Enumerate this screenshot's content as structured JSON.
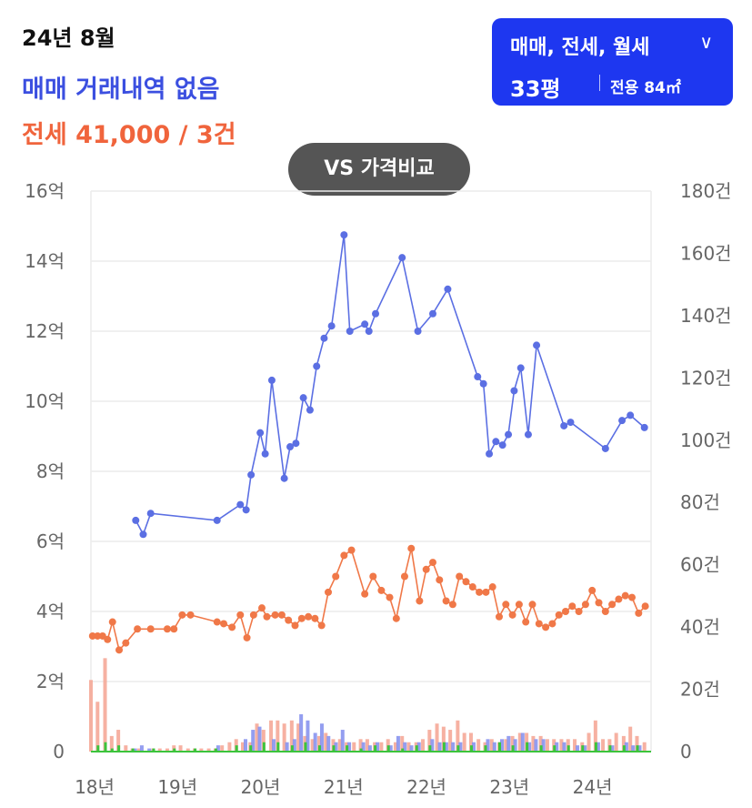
{
  "header": {
    "date": "24년 8월",
    "sale_status": "매매 거래내역 없음",
    "rent_summary": "전세 41,000 / 3건"
  },
  "selector": {
    "types": "매매, 전세, 월세",
    "chevron_icon": "chevron-down-icon",
    "size_pyeong": "33평",
    "size_area": "전용 84㎡"
  },
  "compare_button": {
    "label": "VS 가격비교"
  },
  "colors": {
    "sale": "#5b6fe3",
    "rent": "#f07848",
    "selector_bg": "#1e37f0",
    "vol_green": "#3cc43c"
  },
  "chart_data": {
    "type": "line",
    "x_ticks": [
      "18년",
      "19년",
      "20년",
      "21년",
      "22년",
      "23년",
      "24년"
    ],
    "x_range": [
      2018.0,
      2024.75
    ],
    "y_left": {
      "ticks": [
        "0",
        "2억",
        "4억",
        "6억",
        "8억",
        "10억",
        "12억",
        "14억",
        "16억"
      ],
      "range": [
        0,
        16
      ]
    },
    "y_right": {
      "ticks": [
        "0",
        "20건",
        "40건",
        "60건",
        "80건",
        "100건",
        "120건",
        "140건",
        "160건",
        "180건"
      ],
      "range": [
        0,
        180
      ]
    },
    "series": [
      {
        "key": "sale",
        "color": "#5b6fe3",
        "points": [
          [
            2018.54,
            6.6
          ],
          [
            2018.63,
            6.2
          ],
          [
            2018.72,
            6.8
          ],
          [
            2019.52,
            6.6
          ],
          [
            2019.8,
            7.05
          ],
          [
            2019.87,
            6.9
          ],
          [
            2019.93,
            7.9
          ],
          [
            2020.04,
            9.1
          ],
          [
            2020.1,
            8.5
          ],
          [
            2020.18,
            10.6
          ],
          [
            2020.33,
            7.8
          ],
          [
            2020.4,
            8.7
          ],
          [
            2020.47,
            8.8
          ],
          [
            2020.56,
            10.1
          ],
          [
            2020.64,
            9.75
          ],
          [
            2020.72,
            11.0
          ],
          [
            2020.81,
            11.8
          ],
          [
            2020.9,
            12.15
          ],
          [
            2021.05,
            14.75
          ],
          [
            2021.12,
            12.0
          ],
          [
            2021.3,
            12.2
          ],
          [
            2021.35,
            12.0
          ],
          [
            2021.43,
            12.5
          ],
          [
            2021.75,
            14.1
          ],
          [
            2021.94,
            12.0
          ],
          [
            2022.12,
            12.5
          ],
          [
            2022.3,
            13.2
          ],
          [
            2022.66,
            10.7
          ],
          [
            2022.73,
            10.5
          ],
          [
            2022.8,
            8.5
          ],
          [
            2022.88,
            8.85
          ],
          [
            2022.96,
            8.75
          ],
          [
            2023.03,
            9.05
          ],
          [
            2023.1,
            10.3
          ],
          [
            2023.18,
            10.95
          ],
          [
            2023.27,
            9.05
          ],
          [
            2023.37,
            11.6
          ],
          [
            2023.7,
            9.3
          ],
          [
            2023.78,
            9.4
          ],
          [
            2024.2,
            8.65
          ],
          [
            2024.4,
            9.45
          ],
          [
            2024.5,
            9.6
          ],
          [
            2024.67,
            9.25
          ]
        ]
      },
      {
        "key": "rent",
        "color": "#f07848",
        "points": [
          [
            2018.02,
            3.3
          ],
          [
            2018.08,
            3.3
          ],
          [
            2018.14,
            3.3
          ],
          [
            2018.2,
            3.2
          ],
          [
            2018.26,
            3.7
          ],
          [
            2018.34,
            2.9
          ],
          [
            2018.42,
            3.1
          ],
          [
            2018.56,
            3.5
          ],
          [
            2018.72,
            3.5
          ],
          [
            2018.92,
            3.5
          ],
          [
            2019.0,
            3.5
          ],
          [
            2019.1,
            3.9
          ],
          [
            2019.2,
            3.9
          ],
          [
            2019.52,
            3.7
          ],
          [
            2019.6,
            3.65
          ],
          [
            2019.7,
            3.55
          ],
          [
            2019.8,
            3.9
          ],
          [
            2019.88,
            3.25
          ],
          [
            2019.96,
            3.9
          ],
          [
            2020.06,
            4.1
          ],
          [
            2020.12,
            3.85
          ],
          [
            2020.22,
            3.9
          ],
          [
            2020.3,
            3.9
          ],
          [
            2020.38,
            3.75
          ],
          [
            2020.46,
            3.6
          ],
          [
            2020.54,
            3.8
          ],
          [
            2020.62,
            3.85
          ],
          [
            2020.7,
            3.8
          ],
          [
            2020.78,
            3.6
          ],
          [
            2020.86,
            4.55
          ],
          [
            2020.95,
            5.0
          ],
          [
            2021.05,
            5.6
          ],
          [
            2021.14,
            5.75
          ],
          [
            2021.3,
            4.5
          ],
          [
            2021.4,
            5.0
          ],
          [
            2021.5,
            4.6
          ],
          [
            2021.6,
            4.4
          ],
          [
            2021.68,
            3.8
          ],
          [
            2021.78,
            5.0
          ],
          [
            2021.86,
            5.8
          ],
          [
            2021.96,
            4.3
          ],
          [
            2022.04,
            5.2
          ],
          [
            2022.12,
            5.4
          ],
          [
            2022.2,
            4.9
          ],
          [
            2022.28,
            4.3
          ],
          [
            2022.36,
            4.2
          ],
          [
            2022.44,
            5.0
          ],
          [
            2022.52,
            4.85
          ],
          [
            2022.6,
            4.7
          ],
          [
            2022.68,
            4.55
          ],
          [
            2022.76,
            4.55
          ],
          [
            2022.84,
            4.7
          ],
          [
            2022.92,
            3.85
          ],
          [
            2023.0,
            4.2
          ],
          [
            2023.08,
            3.9
          ],
          [
            2023.16,
            4.2
          ],
          [
            2023.24,
            3.7
          ],
          [
            2023.32,
            4.2
          ],
          [
            2023.4,
            3.65
          ],
          [
            2023.48,
            3.55
          ],
          [
            2023.56,
            3.65
          ],
          [
            2023.64,
            3.9
          ],
          [
            2023.72,
            4.0
          ],
          [
            2023.8,
            4.15
          ],
          [
            2023.88,
            4.0
          ],
          [
            2023.96,
            4.2
          ],
          [
            2024.04,
            4.6
          ],
          [
            2024.12,
            4.25
          ],
          [
            2024.2,
            4.0
          ],
          [
            2024.28,
            4.2
          ],
          [
            2024.36,
            4.35
          ],
          [
            2024.44,
            4.45
          ],
          [
            2024.52,
            4.4
          ],
          [
            2024.6,
            3.95
          ],
          [
            2024.68,
            4.15
          ]
        ]
      }
    ],
    "volume": {
      "note": "monthly transaction counts (right axis)",
      "rent": [
        [
          2018.0,
          23
        ],
        [
          2018.08,
          16
        ],
        [
          2018.17,
          30
        ],
        [
          2018.25,
          5
        ],
        [
          2018.33,
          7
        ],
        [
          2018.42,
          2
        ],
        [
          2018.5,
          1
        ],
        [
          2018.58,
          1
        ],
        [
          2018.67,
          0
        ],
        [
          2018.75,
          1
        ],
        [
          2018.83,
          1
        ],
        [
          2018.92,
          1
        ],
        [
          2019.0,
          2
        ],
        [
          2019.08,
          2
        ],
        [
          2019.17,
          1
        ],
        [
          2019.25,
          1
        ],
        [
          2019.33,
          1
        ],
        [
          2019.42,
          1
        ],
        [
          2019.5,
          1
        ],
        [
          2019.58,
          2
        ],
        [
          2019.67,
          3
        ],
        [
          2019.75,
          4
        ],
        [
          2019.83,
          3
        ],
        [
          2019.92,
          3
        ],
        [
          2020.0,
          9
        ],
        [
          2020.08,
          7
        ],
        [
          2020.17,
          10
        ],
        [
          2020.25,
          10
        ],
        [
          2020.33,
          9
        ],
        [
          2020.42,
          10
        ],
        [
          2020.5,
          9
        ],
        [
          2020.58,
          5
        ],
        [
          2020.67,
          4
        ],
        [
          2020.75,
          5
        ],
        [
          2020.83,
          6
        ],
        [
          2020.92,
          4
        ],
        [
          2021.0,
          4
        ],
        [
          2021.08,
          3
        ],
        [
          2021.17,
          3
        ],
        [
          2021.25,
          4
        ],
        [
          2021.33,
          4
        ],
        [
          2021.42,
          3
        ],
        [
          2021.5,
          3
        ],
        [
          2021.58,
          4
        ],
        [
          2021.67,
          3
        ],
        [
          2021.75,
          5
        ],
        [
          2021.83,
          3
        ],
        [
          2021.92,
          3
        ],
        [
          2022.0,
          4
        ],
        [
          2022.08,
          7
        ],
        [
          2022.17,
          9
        ],
        [
          2022.25,
          8
        ],
        [
          2022.33,
          7
        ],
        [
          2022.42,
          10
        ],
        [
          2022.5,
          6
        ],
        [
          2022.58,
          6
        ],
        [
          2022.67,
          4
        ],
        [
          2022.75,
          3
        ],
        [
          2022.83,
          4
        ],
        [
          2022.92,
          3
        ],
        [
          2023.0,
          4
        ],
        [
          2023.08,
          5
        ],
        [
          2023.17,
          6
        ],
        [
          2023.25,
          6
        ],
        [
          2023.33,
          5
        ],
        [
          2023.42,
          5
        ],
        [
          2023.5,
          4
        ],
        [
          2023.58,
          4
        ],
        [
          2023.67,
          4
        ],
        [
          2023.75,
          4
        ],
        [
          2023.83,
          4
        ],
        [
          2023.92,
          3
        ],
        [
          2024.0,
          6
        ],
        [
          2024.08,
          10
        ],
        [
          2024.17,
          4
        ],
        [
          2024.25,
          4
        ],
        [
          2024.33,
          6
        ],
        [
          2024.42,
          5
        ],
        [
          2024.5,
          8
        ],
        [
          2024.58,
          5
        ],
        [
          2024.67,
          3
        ]
      ],
      "sale": [
        [
          2018.5,
          1
        ],
        [
          2018.58,
          2
        ],
        [
          2018.67,
          1
        ],
        [
          2019.5,
          2
        ],
        [
          2019.83,
          4
        ],
        [
          2019.92,
          7
        ],
        [
          2020.0,
          8
        ],
        [
          2020.17,
          4
        ],
        [
          2020.33,
          3
        ],
        [
          2020.42,
          4
        ],
        [
          2020.5,
          12
        ],
        [
          2020.58,
          10
        ],
        [
          2020.67,
          6
        ],
        [
          2020.75,
          9
        ],
        [
          2020.83,
          5
        ],
        [
          2020.92,
          3
        ],
        [
          2021.0,
          7
        ],
        [
          2021.08,
          3
        ],
        [
          2021.25,
          3
        ],
        [
          2021.33,
          2
        ],
        [
          2021.42,
          3
        ],
        [
          2021.58,
          2
        ],
        [
          2021.67,
          5
        ],
        [
          2021.75,
          3
        ],
        [
          2021.83,
          2
        ],
        [
          2021.92,
          3
        ],
        [
          2022.08,
          4
        ],
        [
          2022.17,
          3
        ],
        [
          2022.25,
          3
        ],
        [
          2022.33,
          3
        ],
        [
          2022.42,
          3
        ],
        [
          2022.58,
          3
        ],
        [
          2022.75,
          4
        ],
        [
          2022.83,
          3
        ],
        [
          2022.92,
          4
        ],
        [
          2023.0,
          5
        ],
        [
          2023.08,
          4
        ],
        [
          2023.17,
          6
        ],
        [
          2023.25,
          3
        ],
        [
          2023.33,
          4
        ],
        [
          2023.42,
          4
        ],
        [
          2023.58,
          3
        ],
        [
          2023.67,
          3
        ],
        [
          2023.83,
          2
        ],
        [
          2023.92,
          2
        ],
        [
          2024.08,
          3
        ],
        [
          2024.25,
          2
        ],
        [
          2024.42,
          3
        ],
        [
          2024.5,
          2
        ],
        [
          2024.58,
          2
        ]
      ],
      "monthly_rent": [
        [
          2018.08,
          2
        ],
        [
          2018.17,
          3
        ],
        [
          2018.25,
          1
        ],
        [
          2018.33,
          2
        ],
        [
          2018.5,
          1
        ],
        [
          2018.75,
          1
        ],
        [
          2019.0,
          1
        ],
        [
          2019.25,
          1
        ],
        [
          2019.5,
          1
        ],
        [
          2019.75,
          2
        ],
        [
          2019.92,
          2
        ],
        [
          2020.08,
          3
        ],
        [
          2020.25,
          3
        ],
        [
          2020.42,
          2
        ],
        [
          2020.58,
          3
        ],
        [
          2020.75,
          2
        ],
        [
          2020.92,
          2
        ],
        [
          2021.08,
          2
        ],
        [
          2021.25,
          1
        ],
        [
          2021.42,
          2
        ],
        [
          2021.58,
          2
        ],
        [
          2021.75,
          1
        ],
        [
          2021.92,
          2
        ],
        [
          2022.08,
          2
        ],
        [
          2022.25,
          3
        ],
        [
          2022.42,
          2
        ],
        [
          2022.58,
          2
        ],
        [
          2022.75,
          2
        ],
        [
          2022.92,
          3
        ],
        [
          2023.08,
          2
        ],
        [
          2023.25,
          3
        ],
        [
          2023.42,
          2
        ],
        [
          2023.58,
          2
        ],
        [
          2023.75,
          2
        ],
        [
          2023.92,
          2
        ],
        [
          2024.08,
          3
        ],
        [
          2024.25,
          2
        ],
        [
          2024.42,
          2
        ],
        [
          2024.58,
          2
        ]
      ]
    }
  }
}
